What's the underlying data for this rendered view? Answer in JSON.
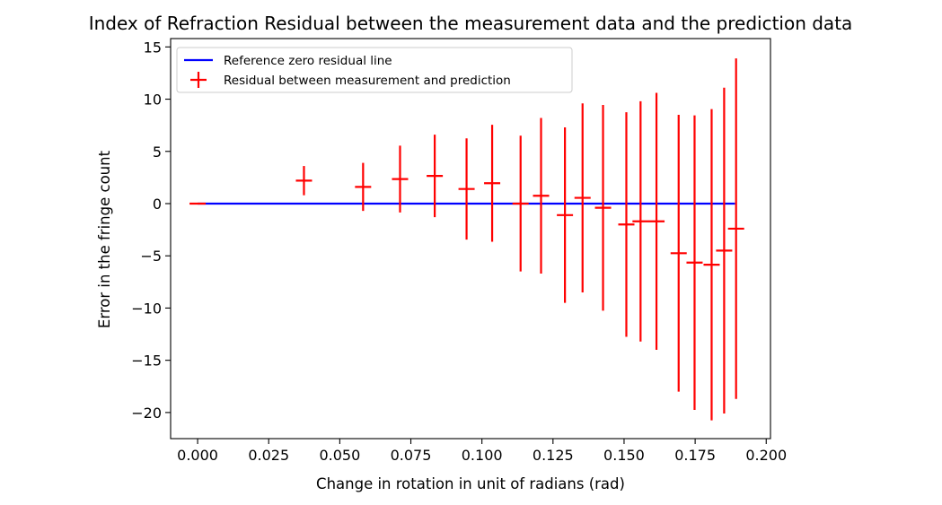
{
  "chart_data": {
    "type": "scatter",
    "title": "Index of Refraction Residual between the measurement data and the prediction data",
    "xlabel": "Change in rotation in unit of radians (rad)",
    "ylabel": "Error in the fringe count",
    "xlim": [
      -0.0095,
      0.2015
    ],
    "ylim": [
      -22.5,
      15.8
    ],
    "xticks": [
      0.0,
      0.025,
      0.05,
      0.075,
      0.1,
      0.125,
      0.15,
      0.175,
      0.2
    ],
    "xtick_labels": [
      "0.000",
      "0.025",
      "0.050",
      "0.075",
      "0.100",
      "0.125",
      "0.150",
      "0.175",
      "0.200"
    ],
    "yticks": [
      15,
      10,
      5,
      0,
      -5,
      -10,
      -15,
      -20
    ],
    "ytick_labels": [
      "15",
      "10",
      "5",
      "0",
      "−5",
      "−10",
      "−15",
      "−20"
    ],
    "grid": false,
    "legend_position": "upper-left",
    "reference_line": {
      "name": "Reference zero residual line",
      "x": [
        0.0,
        0.189
      ],
      "y": [
        0,
        0
      ],
      "color": "#0000ff"
    },
    "residuals": {
      "name": "Residual between measurement and prediction",
      "color": "#ff0000",
      "points": [
        {
          "x": 0.0,
          "y": 0.0,
          "yerr": 0.0
        },
        {
          "x": 0.0374,
          "y": 2.2,
          "yerr": 1.4
        },
        {
          "x": 0.0582,
          "y": 1.6,
          "yerr": 2.3
        },
        {
          "x": 0.0712,
          "y": 2.35,
          "yerr": 3.2
        },
        {
          "x": 0.0834,
          "y": 2.65,
          "yerr": 3.95
        },
        {
          "x": 0.0946,
          "y": 1.4,
          "yerr": 4.85
        },
        {
          "x": 0.1036,
          "y": 1.95,
          "yerr": 5.6
        },
        {
          "x": 0.1136,
          "y": 0.0,
          "yerr": 6.5
        },
        {
          "x": 0.1208,
          "y": 0.75,
          "yerr": 7.45
        },
        {
          "x": 0.1292,
          "y": -1.1,
          "yerr": 8.4
        },
        {
          "x": 0.1354,
          "y": 0.55,
          "yerr": 9.05
        },
        {
          "x": 0.1426,
          "y": -0.4,
          "yerr": 9.85
        },
        {
          "x": 0.1508,
          "y": -2.0,
          "yerr": 10.75
        },
        {
          "x": 0.1558,
          "y": -1.7,
          "yerr": 11.5
        },
        {
          "x": 0.1614,
          "y": -1.7,
          "yerr": 12.3
        },
        {
          "x": 0.1692,
          "y": -4.75,
          "yerr": 13.25
        },
        {
          "x": 0.1748,
          "y": -5.65,
          "yerr": 14.1
        },
        {
          "x": 0.1808,
          "y": -5.85,
          "yerr": 14.9
        },
        {
          "x": 0.1852,
          "y": -4.5,
          "yerr": 15.6
        },
        {
          "x": 0.1894,
          "y": -2.4,
          "yerr": 16.3
        }
      ]
    }
  }
}
